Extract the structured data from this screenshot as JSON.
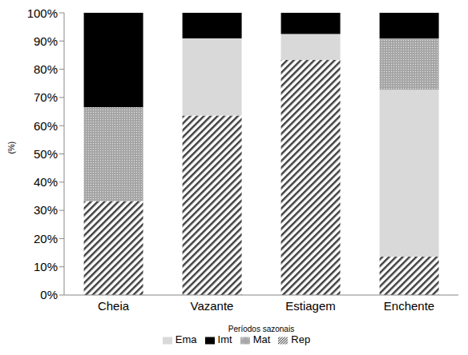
{
  "chart_data": {
    "type": "bar",
    "x_label": "Períodos sazonais",
    "y_label": "(%)",
    "categories": [
      "Cheia",
      "Vazante",
      "Estiagem",
      "Enchente"
    ],
    "series": [
      {
        "name": "Rep",
        "color": "#404040",
        "values": [
          33.3,
          63.6,
          83.3,
          13.6
        ]
      },
      {
        "name": "Ema",
        "color": "#d9d9d9",
        "values": [
          0,
          27.3,
          9.2,
          59.1
        ]
      },
      {
        "name": "Mat",
        "color": "#a6a6a6",
        "values": [
          33.3,
          0,
          0,
          18.2
        ]
      },
      {
        "name": "Imt",
        "color": "#000000",
        "values": [
          33.4,
          9.1,
          7.5,
          9.1
        ]
      }
    ],
    "ylim": [
      0,
      100
    ],
    "yticks": [
      {
        "value": 0,
        "label": "0%"
      },
      {
        "value": 10,
        "label": "10%"
      },
      {
        "value": 20,
        "label": "20%"
      },
      {
        "value": 30,
        "label": "30%"
      },
      {
        "value": 40,
        "label": "40%"
      },
      {
        "value": 50,
        "label": "50%"
      },
      {
        "value": 60,
        "label": "60%"
      },
      {
        "value": 70,
        "label": "70%"
      },
      {
        "value": 80,
        "label": "80%"
      },
      {
        "value": 90,
        "label": "90%"
      },
      {
        "value": 100,
        "label": "100%"
      }
    ],
    "stacked": true,
    "grid": false,
    "legend": "bottom"
  }
}
